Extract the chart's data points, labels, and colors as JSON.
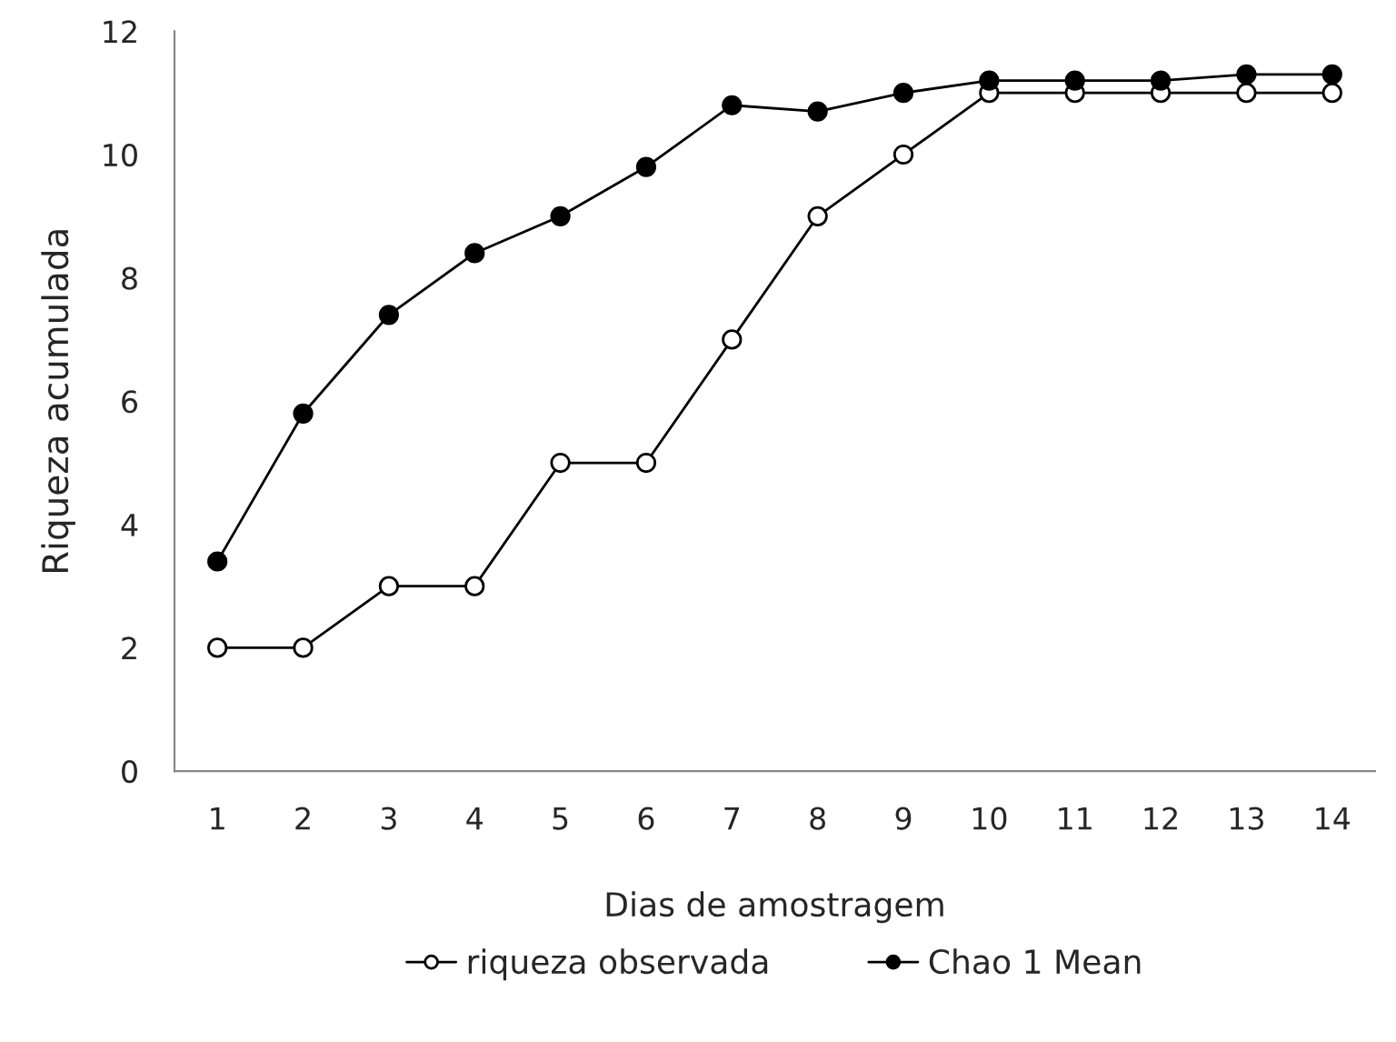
{
  "chart_data": {
    "type": "line",
    "xlabel": "Dias de amostragem",
    "ylabel": "Riqueza acumulada",
    "categories": [
      "1",
      "2",
      "3",
      "4",
      "5",
      "6",
      "7",
      "8",
      "9",
      "10",
      "11",
      "12",
      "13",
      "14"
    ],
    "series": [
      {
        "name": "riqueza observada",
        "color": "#000000",
        "marker": "circle",
        "values": [
          2,
          2,
          3,
          3,
          5,
          5,
          7,
          9,
          10,
          11,
          11,
          11,
          11,
          11
        ]
      },
      {
        "name": "Chao 1 Mean",
        "color": "#000000",
        "marker": "circle",
        "values": [
          3.4,
          5.8,
          7.4,
          8.4,
          9.0,
          9.8,
          10.8,
          10.7,
          11.0,
          11.2,
          11.2,
          11.2,
          11.3,
          11.3
        ]
      }
    ],
    "ylim": [
      0,
      12
    ],
    "yticks": [
      0,
      2,
      4,
      6,
      8,
      10,
      12
    ],
    "grid": false,
    "legend": "bottom",
    "line_style": "solid"
  }
}
